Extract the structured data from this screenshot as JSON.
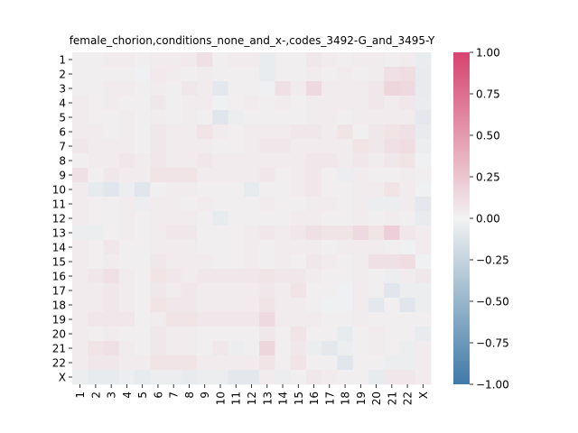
{
  "chart_data": {
    "type": "heatmap",
    "title": "female_chorion,conditions_none_and_x-,codes_3492-G_and_3495-Y",
    "x_labels": [
      "1",
      "2",
      "3",
      "4",
      "5",
      "6",
      "7",
      "8",
      "9",
      "10",
      "11",
      "12",
      "13",
      "14",
      "15",
      "16",
      "17",
      "18",
      "19",
      "20",
      "21",
      "22",
      "X"
    ],
    "y_labels": [
      "1",
      "2",
      "3",
      "4",
      "5",
      "6",
      "7",
      "8",
      "9",
      "10",
      "11",
      "12",
      "13",
      "14",
      "15",
      "16",
      "17",
      "18",
      "19",
      "20",
      "21",
      "22",
      "X"
    ],
    "zlim": [
      -1.0,
      1.0
    ],
    "colorbar": {
      "ticks": [
        -1.0,
        -0.75,
        -0.5,
        -0.25,
        0.0,
        0.25,
        0.5,
        0.75,
        1.0
      ],
      "tick_labels": [
        "−1.00",
        "−0.75",
        "−0.50",
        "−0.25",
        "0.00",
        "0.25",
        "0.50",
        "0.75",
        "1.00"
      ],
      "colors": {
        "negative": "#3f7aa7",
        "center": "#f2f2f2",
        "positive": "#d6426e"
      }
    },
    "values": [
      [
        0.02,
        0.02,
        0.04,
        0.04,
        0.02,
        0.04,
        0.04,
        0.05,
        0.1,
        0.02,
        0.04,
        0.04,
        -0.05,
        0.02,
        0.02,
        0.06,
        0.04,
        0.02,
        0.04,
        0.04,
        0.02,
        0.04,
        -0.05
      ],
      [
        0.02,
        0.02,
        0.02,
        0.02,
        -0.02,
        0.05,
        0.04,
        0.02,
        0.04,
        0.02,
        0.02,
        0.02,
        -0.05,
        0.02,
        0.02,
        0.04,
        0.02,
        0.04,
        0.02,
        0.04,
        0.1,
        0.12,
        -0.06
      ],
      [
        0.02,
        0.02,
        0.04,
        0.04,
        0.02,
        0.04,
        0.02,
        0.06,
        0.04,
        -0.08,
        0.02,
        0.02,
        -0.02,
        0.1,
        0.04,
        0.14,
        0.04,
        0.04,
        0.04,
        0.06,
        0.16,
        0.14,
        -0.06
      ],
      [
        0.04,
        0.02,
        0.04,
        0.02,
        0.02,
        0.06,
        0.02,
        0.04,
        0.04,
        -0.02,
        0.02,
        0.04,
        0.02,
        0.04,
        0.02,
        0.04,
        0.04,
        0.04,
        0.04,
        0.06,
        0.04,
        0.06,
        -0.05
      ],
      [
        0.04,
        0.02,
        0.02,
        0.04,
        0.02,
        0.04,
        0.02,
        0.04,
        0.02,
        -0.1,
        -0.04,
        0.02,
        0.02,
        0.02,
        0.02,
        0.04,
        0.04,
        0.02,
        0.04,
        0.04,
        0.04,
        0.04,
        -0.08
      ],
      [
        0.04,
        0.04,
        0.02,
        0.04,
        0.02,
        0.06,
        0.04,
        0.04,
        0.08,
        0.04,
        0.02,
        0.04,
        0.04,
        0.04,
        0.06,
        0.06,
        0.04,
        0.08,
        0.02,
        0.06,
        0.08,
        0.1,
        -0.06
      ],
      [
        0.06,
        0.04,
        0.04,
        0.04,
        0.02,
        0.06,
        0.04,
        0.04,
        0.04,
        0.02,
        0.02,
        0.04,
        0.06,
        0.06,
        0.04,
        0.04,
        0.04,
        0.04,
        0.08,
        0.06,
        0.1,
        0.12,
        -0.04
      ],
      [
        0.02,
        0.04,
        0.04,
        0.06,
        0.04,
        0.06,
        0.04,
        0.04,
        0.06,
        0.04,
        0.04,
        0.04,
        0.04,
        0.04,
        0.04,
        0.06,
        0.06,
        0.04,
        0.06,
        0.04,
        0.06,
        0.08,
        -0.02
      ],
      [
        0.1,
        0.02,
        0.06,
        0.04,
        0.04,
        0.08,
        0.08,
        0.08,
        0.04,
        0.04,
        0.04,
        0.04,
        0.06,
        0.02,
        0.04,
        0.06,
        0.02,
        -0.04,
        0.04,
        0.02,
        0.02,
        0.04,
        0.02
      ],
      [
        0.04,
        -0.06,
        -0.1,
        -0.04,
        -0.1,
        0.02,
        0.04,
        0.04,
        0.02,
        0.02,
        0.02,
        -0.06,
        0.02,
        0.02,
        0.04,
        0.06,
        0.02,
        0.02,
        0.04,
        0.04,
        0.08,
        0.04,
        -0.02
      ],
      [
        0.04,
        0.02,
        0.02,
        0.04,
        -0.04,
        0.04,
        0.04,
        0.02,
        0.04,
        0.02,
        0.02,
        0.02,
        0.04,
        0.02,
        0.02,
        0.04,
        0.04,
        0.02,
        0.04,
        -0.04,
        -0.04,
        0.04,
        -0.08
      ],
      [
        0.04,
        0.02,
        0.02,
        0.04,
        0.02,
        0.04,
        0.04,
        0.04,
        0.02,
        -0.06,
        0.02,
        0.02,
        0.02,
        0.02,
        0.04,
        0.04,
        0.02,
        0.02,
        0.04,
        0.02,
        0.04,
        0.02,
        -0.06
      ],
      [
        -0.04,
        -0.04,
        0.02,
        0.04,
        0.02,
        0.04,
        0.06,
        0.06,
        0.02,
        0.02,
        0.02,
        0.04,
        0.06,
        0.04,
        0.06,
        0.1,
        0.08,
        0.08,
        0.14,
        0.08,
        0.2,
        0.06,
        0.04
      ],
      [
        0.04,
        0.02,
        0.06,
        0.02,
        0.02,
        0.04,
        0.04,
        0.04,
        0.02,
        0.02,
        0.02,
        0.04,
        0.02,
        0.04,
        0.04,
        0.04,
        0.02,
        0.04,
        0.04,
        0.04,
        0.02,
        -0.02,
        0.04
      ],
      [
        0.04,
        0.02,
        0.04,
        0.02,
        0.02,
        0.06,
        0.04,
        0.04,
        0.04,
        0.02,
        0.02,
        0.04,
        0.02,
        0.04,
        0.02,
        0.06,
        0.04,
        0.02,
        0.04,
        0.1,
        0.1,
        0.12,
        -0.02
      ],
      [
        0.04,
        0.06,
        0.1,
        0.04,
        0.02,
        0.08,
        0.06,
        0.04,
        0.06,
        0.06,
        0.06,
        0.06,
        0.08,
        0.06,
        0.06,
        0.04,
        0.02,
        0.02,
        0.04,
        0.02,
        -0.04,
        0.04,
        0.06
      ],
      [
        0.04,
        0.04,
        0.06,
        0.04,
        0.02,
        0.06,
        0.04,
        0.06,
        0.04,
        0.04,
        0.04,
        0.04,
        0.06,
        0.04,
        0.08,
        0.02,
        0.02,
        -0.02,
        0.04,
        0.02,
        -0.1,
        -0.04,
        -0.04
      ],
      [
        0.04,
        0.04,
        0.06,
        0.04,
        0.02,
        0.08,
        0.06,
        0.06,
        0.04,
        0.04,
        0.04,
        0.04,
        0.08,
        0.04,
        0.04,
        0.02,
        -0.02,
        -0.02,
        0.04,
        -0.08,
        0.02,
        -0.1,
        -0.04
      ],
      [
        0.04,
        0.06,
        0.06,
        0.06,
        0.02,
        0.04,
        0.08,
        0.08,
        0.06,
        0.06,
        0.06,
        0.06,
        0.14,
        0.04,
        0.04,
        0.04,
        0.02,
        0.02,
        0.04,
        0.02,
        0.02,
        0.02,
        0.02
      ],
      [
        0.04,
        0.02,
        0.04,
        0.02,
        0.02,
        0.06,
        0.04,
        0.04,
        0.02,
        0.02,
        0.02,
        0.02,
        0.06,
        0.02,
        0.08,
        0.02,
        0.02,
        -0.06,
        0.02,
        0.04,
        0.02,
        0.02,
        -0.06
      ],
      [
        0.04,
        0.08,
        0.1,
        0.04,
        0.02,
        0.06,
        0.04,
        0.04,
        0.02,
        0.06,
        -0.04,
        0.02,
        0.16,
        0.02,
        0.06,
        -0.04,
        -0.08,
        -0.04,
        0.02,
        0.04,
        0.02,
        -0.04,
        0.04
      ],
      [
        0.04,
        0.06,
        0.06,
        0.04,
        0.04,
        0.08,
        0.08,
        0.08,
        0.04,
        0.04,
        0.04,
        0.04,
        0.08,
        0.02,
        0.08,
        0.02,
        0.02,
        -0.1,
        0.02,
        0.02,
        -0.04,
        -0.04,
        0.04
      ],
      [
        -0.04,
        -0.06,
        -0.06,
        -0.04,
        -0.06,
        -0.04,
        -0.04,
        -0.06,
        -0.04,
        -0.04,
        -0.08,
        -0.08,
        0.04,
        -0.04,
        0.02,
        0.06,
        0.04,
        0.02,
        0.02,
        -0.06,
        0.06,
        0.06,
        0.04
      ]
    ]
  }
}
